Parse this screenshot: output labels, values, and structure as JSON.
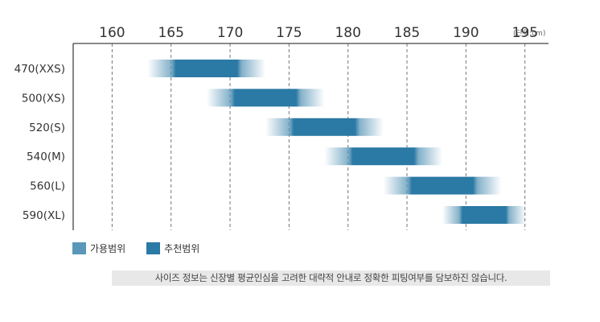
{
  "colors": {
    "allowable": "#5b97b8",
    "recommended": "#2b79a5",
    "axis": "#444444",
    "grid": "#777777"
  },
  "chart_data": {
    "type": "bar",
    "orientation": "horizontal-range",
    "x_ticks": [
      160,
      165,
      170,
      175,
      180,
      185,
      190,
      195
    ],
    "xlim": [
      156.7,
      197
    ],
    "unit_label": "(단위:cm)",
    "grid": true,
    "categories": [
      "470(XXS)",
      "500(XS)",
      "520(S)",
      "540(M)",
      "560(L)",
      "590(XL)"
    ],
    "series": [
      {
        "name": "가용범위",
        "ranges": [
          [
            163,
            173
          ],
          [
            168,
            178
          ],
          [
            173,
            183
          ],
          [
            178,
            188
          ],
          [
            183,
            193
          ],
          [
            188,
            198
          ]
        ]
      },
      {
        "name": "추천범위",
        "ranges": [
          [
            165,
            171
          ],
          [
            170,
            176
          ],
          [
            175,
            181
          ],
          [
            180,
            186
          ],
          [
            185,
            191
          ],
          [
            190,
            196
          ]
        ]
      }
    ]
  },
  "legend": {
    "allowable_label": "가용범위",
    "recommended_label": "추천범위",
    "placement": "bottom-left"
  },
  "notice": "사이즈 정보는 신장별 평균인심을 고려한 대략적 안내로 정확한 피팅여부를 담보하진 않습니다."
}
